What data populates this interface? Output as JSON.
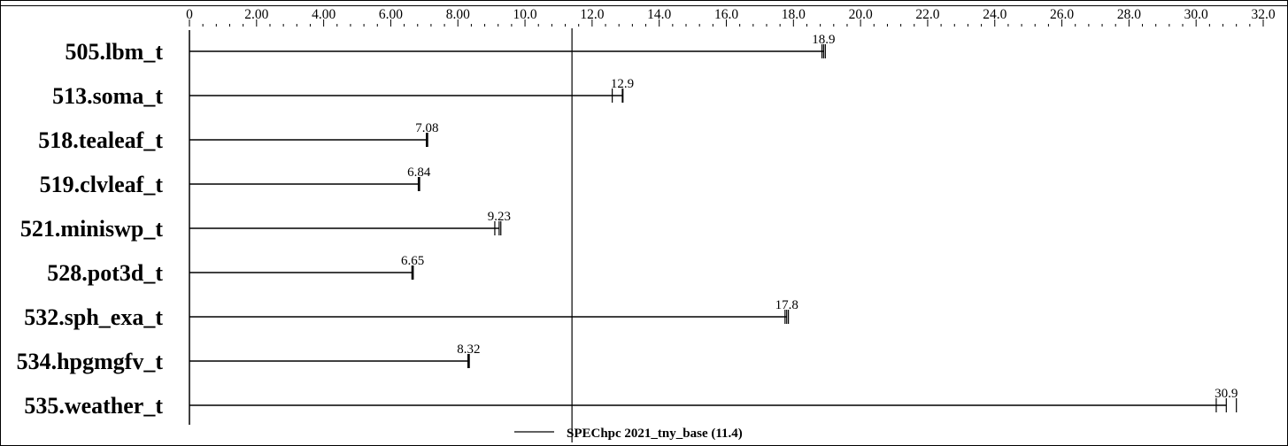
{
  "chart_data": {
    "type": "bar",
    "orientation": "horizontal",
    "categories": [
      "505.lbm_t",
      "513.soma_t",
      "518.tealeaf_t",
      "519.clvleaf_t",
      "521.miniswp_t",
      "528.pot3d_t",
      "532.sph_exa_t",
      "534.hpgmgfv_t",
      "535.weather_t"
    ],
    "series": [
      {
        "name": "SPEChpc 2021_tny_base (11.4)",
        "values": [
          18.9,
          12.9,
          7.08,
          6.84,
          9.23,
          6.65,
          17.8,
          8.32,
          30.9
        ],
        "run_marks": [
          [
            18.85,
            18.9,
            18.95
          ],
          [
            12.6,
            12.9,
            12.92
          ],
          [
            7.06,
            7.08,
            7.1
          ],
          [
            6.82,
            6.84,
            6.86
          ],
          [
            9.1,
            9.23,
            9.28
          ],
          [
            6.63,
            6.65,
            6.67
          ],
          [
            17.75,
            17.8,
            17.85
          ],
          [
            8.3,
            8.32,
            8.34
          ],
          [
            30.6,
            30.9,
            31.2
          ]
        ]
      }
    ],
    "value_labels": [
      "18.9",
      "12.9",
      "7.08",
      "6.84",
      "9.23",
      "6.65",
      "17.8",
      "8.32",
      "30.9"
    ],
    "reference_line": {
      "value": 11.4
    },
    "x_ticks": [
      0,
      2,
      4,
      6,
      8,
      10,
      12,
      14,
      16,
      18,
      20,
      22,
      24,
      26,
      28,
      30,
      32
    ],
    "x_tick_labels": [
      "0",
      "2.00",
      "4.00",
      "6.00",
      "8.00",
      "10.0",
      "12.0",
      "14.0",
      "16.0",
      "18.0",
      "20.0",
      "22.0",
      "24.0",
      "26.0",
      "28.0",
      "30.0",
      "32.0"
    ],
    "xlim": [
      0,
      32
    ],
    "minor_tick_step": 0.4,
    "title": "",
    "xlabel": "",
    "ylabel": "",
    "grid": false,
    "legend_position": "bottom-center"
  },
  "colors": {
    "background": "#ffffff",
    "ink": "#000000"
  }
}
